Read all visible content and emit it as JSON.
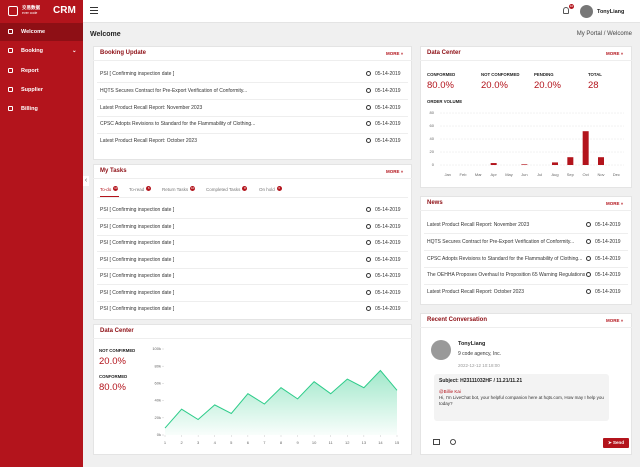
{
  "sidebar": {
    "brand_cn": "交易数据",
    "brand_en": "ever code",
    "brand": "CRM",
    "menu": [
      "Welcome",
      "Booking",
      "Report",
      "Supplier",
      "Billing"
    ]
  },
  "header": {
    "notifications": "10",
    "user": "TonyLiang"
  },
  "breadcrumb": {
    "title": "Welcome",
    "path": [
      "My Portal",
      "Welcome"
    ],
    "separator": "/"
  },
  "booking_update": {
    "title": "Booking Update",
    "more": "MORE »",
    "items": [
      {
        "text": "PSI [ Confirming inspection date ]",
        "date": "05-14-2019"
      },
      {
        "text": "HQTS Secures Contract for Pre-Export Verification of Conformity...",
        "date": "05-14-2019"
      },
      {
        "text": "Latest Product Recall Report: November 2023",
        "date": "05-14-2019"
      },
      {
        "text": "CPSC Adopts Revisions to Standard for the Flammability of Clothing...",
        "date": "05-14-2019"
      },
      {
        "text": "Latest Product Recall Report: October 2023",
        "date": "05-14-2019"
      }
    ]
  },
  "data_center_top": {
    "title": "Data Center",
    "more": "MORE »",
    "stats": [
      {
        "label": "CONFORMED",
        "value": "80.0%"
      },
      {
        "label": "NOT CONFORMED",
        "value": "20.0%"
      },
      {
        "label": "PENDING",
        "value": "20.0%"
      },
      {
        "label": "TOTAL",
        "value": "28"
      }
    ]
  },
  "my_tasks": {
    "title": "My Tasks",
    "more": "MORE »",
    "tabs": [
      {
        "name": "To-do",
        "count": "10"
      },
      {
        "name": "To-read",
        "count": "6"
      },
      {
        "name": "Return Tasks",
        "count": "10"
      },
      {
        "name": "Completed Tasks",
        "count": "8"
      },
      {
        "name": "On hold",
        "count": "6"
      }
    ],
    "items": [
      {
        "text": "PSI [ Confirming inspection date ]",
        "date": "05-14-2019"
      },
      {
        "text": "PSI [ Confirming inspection date ]",
        "date": "05-14-2019"
      },
      {
        "text": "PSI [ Confirming inspection date ]",
        "date": "05-14-2019"
      },
      {
        "text": "PSI [ Confirming inspection date ]",
        "date": "05-14-2019"
      },
      {
        "text": "PSI [ Confirming inspection date ]",
        "date": "05-14-2019"
      },
      {
        "text": "PSI [ Confirming inspection date ]",
        "date": "05-14-2019"
      },
      {
        "text": "PSI [ Confirming inspection date ]",
        "date": "05-14-2019"
      }
    ]
  },
  "news": {
    "title": "News",
    "more": "MORE »",
    "items": [
      {
        "text": "Latest Product Recall Report: November 2023",
        "date": "05-14-2019"
      },
      {
        "text": "HQTS Secures Contract for Pre-Export Verification of Conformity...",
        "date": "05-14-2019"
      },
      {
        "text": "CPSC Adopts Revisions to Standard for the Flammability of Clothing...",
        "date": "05-14-2019"
      },
      {
        "text": "The OEHHA Proposes Overhaul to Proposition 65 Warning Regulations",
        "date": "05-14-2019"
      },
      {
        "text": "Latest Product Recall Report: October 2023",
        "date": "05-14-2019"
      }
    ]
  },
  "data_center_bottom": {
    "title": "Data Center",
    "stats": [
      {
        "label": "NOT CONFIRMED",
        "value": "20.0%"
      },
      {
        "label": "CONFORMED",
        "value": "80.0%"
      }
    ]
  },
  "conversation": {
    "title": "Recent Conversation",
    "more": "MORE »",
    "name": "TonyLiang",
    "company": "9 code agency, Inc.",
    "time": "2022-12-12 10:18:00",
    "subject": "Subject: H23111032HF / 11.21/11.21",
    "mention": "@Billie Kai",
    "message": "Hi, I'm LiveChat bot, your helpful companion here at hqts.com, How may I help you today?",
    "send": "Send"
  },
  "chart_data": [
    {
      "type": "bar",
      "title": "ORDER VOLUME",
      "categories": [
        "Jan",
        "Feb",
        "Mar",
        "Apr",
        "May",
        "Jun",
        "Jul",
        "Aug",
        "Sep",
        "Oct",
        "Nov",
        "Dec"
      ],
      "values": [
        0,
        0,
        0,
        3,
        0,
        1,
        0,
        4,
        12,
        52,
        12,
        0
      ],
      "color": "#b3141c",
      "ylim": [
        0,
        80
      ],
      "yticks": [
        0,
        20,
        40,
        60,
        80
      ],
      "grid": true
    },
    {
      "type": "area",
      "x": [
        1,
        2,
        3,
        4,
        5,
        6,
        7,
        8,
        9,
        10,
        11,
        12,
        13,
        14,
        15
      ],
      "values": [
        8000,
        30000,
        18000,
        35000,
        25000,
        48000,
        36000,
        55000,
        42000,
        62000,
        48000,
        65000,
        55000,
        75000,
        52000
      ],
      "color": "#2ecc8a",
      "xlim": [
        1,
        15
      ],
      "xticks": [
        1,
        2,
        3,
        4,
        5,
        6,
        7,
        8,
        9,
        10,
        11,
        12,
        13,
        14,
        15
      ],
      "ylim": [
        0,
        100000
      ],
      "yticks": [
        {
          "value": 0,
          "label": "0k"
        },
        {
          "value": 20000,
          "label": "20k"
        },
        {
          "value": 40000,
          "label": "40k"
        },
        {
          "value": 60000,
          "label": "60k"
        },
        {
          "value": 80000,
          "label": "80k"
        },
        {
          "value": 100000,
          "label": "100k"
        }
      ],
      "grid": false
    }
  ]
}
